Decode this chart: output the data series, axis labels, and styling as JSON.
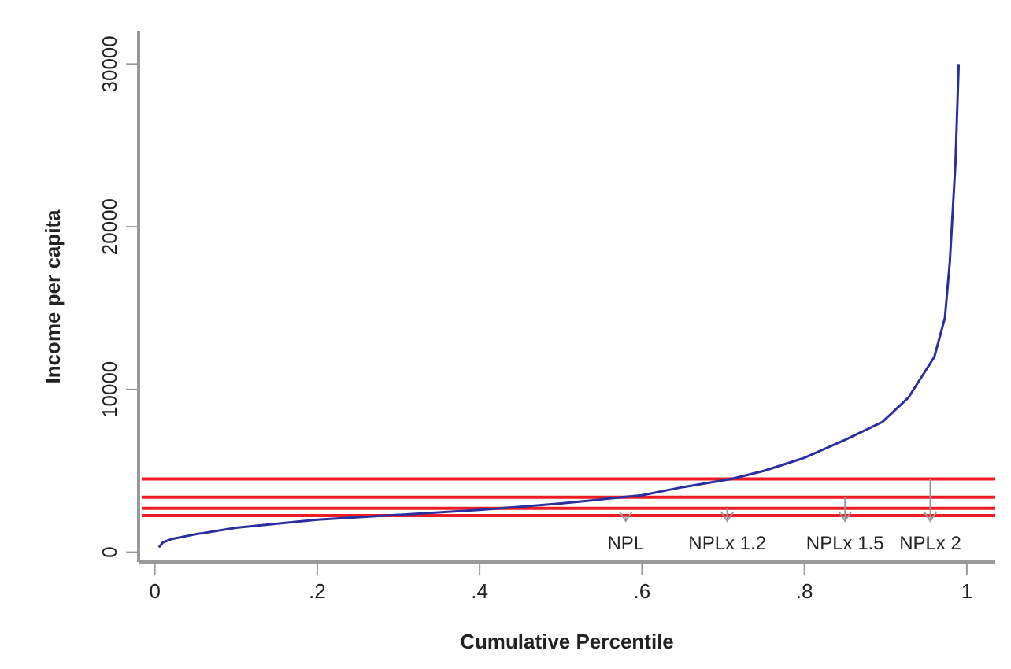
{
  "chart_data": {
    "type": "line",
    "xlabel": "Cumulative Percentile",
    "ylabel": "Income per capita",
    "x": [
      0.005,
      0.01,
      0.02,
      0.05,
      0.1,
      0.2,
      0.3,
      0.4,
      0.45,
      0.5,
      0.58,
      0.6,
      0.65,
      0.71,
      0.75,
      0.8,
      0.85,
      0.896,
      0.928,
      0.96,
      0.973,
      0.979,
      0.986,
      0.99
    ],
    "series": [
      {
        "color": "#2b2f9e",
        "values": [
          300,
          600,
          800,
          1100,
          1500,
          2000,
          2300,
          2600,
          2800,
          3000,
          3400,
          3500,
          4000,
          4500,
          5000,
          5800,
          6900,
          8000,
          9500,
          12000,
          14400,
          17800,
          23900,
          30000
        ]
      }
    ],
    "xlim": [
      -0.02,
      1.035
    ],
    "ylim": [
      -600,
      32000
    ],
    "xticks": [
      0,
      {
        "value": 0.2,
        "label": ".2"
      },
      {
        "value": 0.4,
        "label": ".4"
      },
      {
        "value": 0.6,
        "label": ".6"
      },
      {
        "value": 0.8,
        "label": ".8"
      },
      1
    ],
    "yticks": [
      0,
      10000,
      20000,
      30000
    ],
    "ref_lines": [
      {
        "axis": "y",
        "value": 2250,
        "color": "#ee1c25"
      },
      {
        "axis": "y",
        "value": 2700,
        "color": "#ee1c25"
      },
      {
        "axis": "y",
        "value": 3375,
        "color": "#ee1c25"
      },
      {
        "axis": "y",
        "value": 4500,
        "color": "#ee1c25"
      }
    ],
    "annotations": [
      {
        "text": "NPL",
        "x": 0.58,
        "y": 2250
      },
      {
        "text": "NPLx 1.2",
        "x": 0.705,
        "y": 2700
      },
      {
        "text": "NPLx 1.5",
        "x": 0.85,
        "y": 3375
      },
      {
        "text": "NPLx 2",
        "x": 0.955,
        "y": 4500
      }
    ],
    "grid": false,
    "marker": "none",
    "line_style": "solid"
  }
}
